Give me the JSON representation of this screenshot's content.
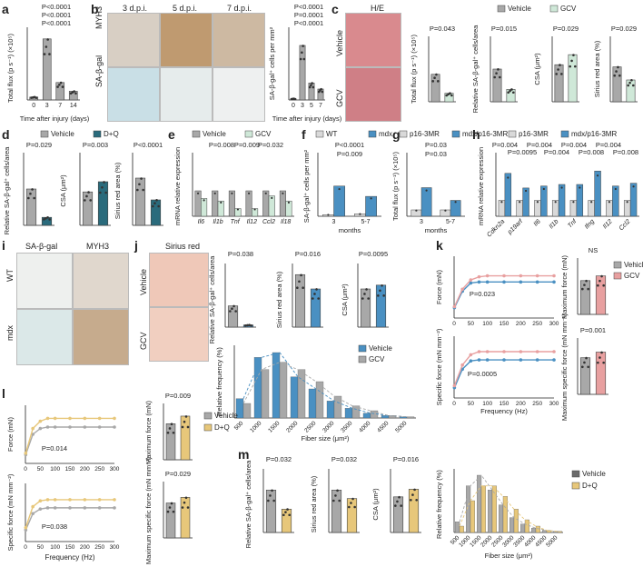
{
  "panels": {
    "a": {
      "letter": "a",
      "ylabel": "Total flux (p s⁻¹) (×10⁵)",
      "xlabel": "Time after injury (days)",
      "pvals": [
        "P<0.0001",
        "P<0.0001",
        "P<0.0001"
      ]
    },
    "b": {
      "letter": "b",
      "cols": [
        "3 d.p.i.",
        "5 d.p.i.",
        "7 d.p.i."
      ],
      "rows": [
        "MYH3",
        "SA-β-gal"
      ],
      "ylabel": "SA-β-gal⁺ cells per mm²",
      "xlabel": "Time after injury (days)",
      "pvals": [
        "P<0.0001",
        "P=0.0001",
        "P<0.0001"
      ]
    },
    "c": {
      "letter": "c",
      "title": "H/E",
      "rows": [
        "Vehicle",
        "GCV"
      ],
      "legend": [
        "Vehicle",
        "GCV"
      ],
      "pvals": [
        "P=0.043",
        "P=0.015",
        "P=0.029",
        "P=0.029"
      ],
      "ylabels": [
        "Total flux (p s⁻¹) (×10⁵)",
        "Relative SA-β-gal⁺ cells/area",
        "CSA (μm²)",
        "Sirius red area (%)"
      ]
    },
    "d": {
      "letter": "d",
      "legend": [
        "Vehicle",
        "D+Q"
      ],
      "pvals": [
        "P=0.029",
        "P=0.003",
        "P<0.0001"
      ],
      "ylabels": [
        "Relative SA-β-gal⁺ cells/area",
        "CSA (μm²)",
        "Sirius red area (%)"
      ]
    },
    "e": {
      "letter": "e",
      "legend": [
        "Vehicle",
        "GCV"
      ],
      "ylabel": "mRNA relative expression",
      "genes": [
        "Il6",
        "Il1b",
        "Tnf",
        "Il12",
        "Ccl2",
        "Il18"
      ],
      "pvals": [
        "P=0.008",
        "P=0.009",
        "P=0.032"
      ]
    },
    "f": {
      "letter": "f",
      "legend": [
        "WT",
        "mdx"
      ],
      "ylabel": "SA-β-gal⁺ cells per mm²",
      "xlabel": "months",
      "xcats": [
        "3",
        "5-7"
      ],
      "pvals": [
        "P<0.0001",
        "P=0.009"
      ]
    },
    "g": {
      "letter": "g",
      "legend": [
        "p16-3MR",
        "mdx/p16-3MR"
      ],
      "ylabel": "Total flux (p s⁻¹) (×10⁵)",
      "xlabel": "months",
      "xcats": [
        "3",
        "5-7"
      ],
      "pvals": [
        "P=0.03",
        "P=0.03"
      ]
    },
    "h": {
      "letter": "h",
      "legend": [
        "p16-3MR",
        "mdx/p16-3MR"
      ],
      "ylabel": "mRNA relative expression",
      "genes": [
        "Cdkn2a",
        "p19arf",
        "Il6",
        "Il1b",
        "Tnf",
        "Ifng",
        "Il12",
        "Ccl2"
      ],
      "pvals": [
        "P=0.004",
        "P=0.0095",
        "P=0.004",
        "P=0.004",
        "P=0.004",
        "P=0.008",
        "P=0.004",
        "P=0.008"
      ]
    },
    "i": {
      "letter": "i",
      "cols": [
        "SA-β-gal",
        "MYH3"
      ],
      "rows": [
        "WT",
        "mdx"
      ]
    },
    "j": {
      "letter": "j",
      "title": "Sirius red",
      "rows": [
        "Vehicle",
        "GCV"
      ],
      "pvals": [
        "P=0.038",
        "P=0.016",
        "P=0.0095"
      ],
      "ylabels": [
        "Relative SA-β-gal⁺ cells/area",
        "Sirius red area (%)",
        "CSA (μm²)"
      ],
      "hist_ylabel": "Relative frequency (%)",
      "hist_xlabel": "Fiber size (μm²)",
      "legend": [
        "Vehicle",
        "GCV"
      ]
    },
    "k": {
      "letter": "k",
      "legend": [
        "Vehicle",
        "GCV"
      ],
      "ylabels": [
        "Force (mN)",
        "Specific force (mN mm⁻²)"
      ],
      "xlabel": "Frequency (Hz)",
      "pvals": [
        "P=0.023",
        "P=0.0005",
        "NS",
        "P=0.001"
      ],
      "bar_ylabels": [
        "Maximum force (mN)",
        "Maximum specific force (mN mm⁻²)"
      ]
    },
    "l": {
      "letter": "l",
      "legend": [
        "Vehicle",
        "D+Q"
      ],
      "ylabels": [
        "Force (mN)",
        "Specific force (mN mm⁻²)"
      ],
      "xlabel": "Frequency (Hz)",
      "pvals": [
        "P=0.014",
        "P=0.038",
        "P=0.009",
        "P=0.029"
      ],
      "bar_ylabels": [
        "Maximum force (mN)",
        "Maximum specific force (mN mm⁻²)"
      ]
    },
    "m": {
      "letter": "m",
      "legend": [
        "Vehicle",
        "D+Q"
      ],
      "pvals": [
        "P=0.032",
        "P=0.032",
        "P=0.016"
      ],
      "ylabels": [
        "Relative SA-β-gal⁺ cells/area",
        "Sirius red area (%)",
        "CSA (μm²)",
        "Relative frequency (%)"
      ],
      "hist_xlabel": "Fiber size (μm²)"
    }
  },
  "colors": {
    "vehicle": "#a8a8a8",
    "gcv": "#cfe8d8",
    "dq": "#2a6b7c",
    "mdx": "#4a90c2",
    "wt": "#d9d9d9",
    "sirius": "#e8a0a0",
    "dq_line": "#e7c77a"
  },
  "chart_data": [
    {
      "id": "a",
      "type": "bar",
      "categories": [
        "0",
        "3",
        "7",
        "14"
      ],
      "values": [
        1,
        21,
        6,
        3
      ],
      "ylim": [
        0,
        25
      ]
    },
    {
      "id": "b",
      "type": "bar",
      "categories": [
        "0",
        "3",
        "5",
        "7"
      ],
      "values": [
        10,
        450,
        140,
        90
      ],
      "ylim": [
        0,
        600
      ]
    },
    {
      "id": "c1",
      "type": "bar",
      "categories": [
        "Vehicle",
        "GCV"
      ],
      "values": [
        4.2,
        1.3
      ],
      "ylim": [
        0,
        10
      ]
    },
    {
      "id": "c2",
      "type": "bar",
      "categories": [
        "Vehicle",
        "GCV"
      ],
      "values": [
        100,
        38
      ],
      "ylim": [
        0,
        200
      ]
    },
    {
      "id": "c3",
      "type": "bar",
      "categories": [
        "Vehicle",
        "GCV"
      ],
      "values": [
        850,
        1080
      ],
      "ylim": [
        0,
        1500
      ]
    },
    {
      "id": "c4",
      "type": "bar",
      "categories": [
        "Vehicle",
        "GCV"
      ],
      "values": [
        16,
        10
      ],
      "ylim": [
        0,
        30
      ]
    },
    {
      "id": "d1",
      "type": "bar",
      "categories": [
        "Vehicle",
        "D+Q"
      ],
      "values": [
        100,
        22
      ],
      "ylim": [
        0,
        200
      ]
    },
    {
      "id": "d2",
      "type": "bar",
      "categories": [
        "Vehicle",
        "D+Q"
      ],
      "values": [
        1150,
        1500
      ],
      "ylim": [
        0,
        2500
      ]
    },
    {
      "id": "d3",
      "type": "bar",
      "categories": [
        "Vehicle",
        "D+Q"
      ],
      "values": [
        13,
        7
      ],
      "ylim": [
        0,
        20
      ]
    },
    {
      "id": "e",
      "type": "bar",
      "categories": [
        "Il6",
        "Il1b",
        "Tnf",
        "Il12",
        "Ccl2",
        "Il18"
      ],
      "series": [
        {
          "name": "Vehicle",
          "values": [
            1.0,
            1.0,
            1.0,
            1.0,
            1.0,
            1.0
          ]
        },
        {
          "name": "GCV",
          "values": [
            0.7,
            0.6,
            0.3,
            0.3,
            0.8,
            0.6
          ]
        }
      ],
      "ylim": [
        0,
        2.5
      ]
    },
    {
      "id": "f",
      "type": "bar",
      "categories": [
        "3",
        "5-7"
      ],
      "series": [
        {
          "name": "WT",
          "values": [
            2,
            3
          ]
        },
        {
          "name": "mdx",
          "values": [
            38,
            25
          ]
        }
      ],
      "ylim": [
        0,
        80
      ]
    },
    {
      "id": "g",
      "type": "bar",
      "categories": [
        "3",
        "5-7"
      ],
      "series": [
        {
          "name": "p16-3MR",
          "values": [
            2,
            2
          ]
        },
        {
          "name": "mdx/p16-3MR",
          "values": [
            9,
            5
          ]
        }
      ],
      "ylim": [
        0,
        20
      ]
    },
    {
      "id": "h",
      "type": "bar",
      "categories": [
        "Cdkn2a",
        "p19arf",
        "Il6",
        "Il1b",
        "Tnf",
        "Ifng",
        "Il12",
        "Ccl2"
      ],
      "series": [
        {
          "name": "p16-3MR",
          "values": [
            1,
            1,
            1,
            1,
            1,
            1,
            1,
            1
          ]
        },
        {
          "name": "mdx/p16-3MR",
          "values": [
            50,
            6,
            8,
            10,
            10,
            70,
            8,
            12
          ]
        }
      ],
      "ylim": [
        0.1,
        1000
      ],
      "scale": "log"
    },
    {
      "id": "j1",
      "type": "bar",
      "categories": [
        "Vehicle",
        "GCV"
      ],
      "values": [
        100,
        10
      ],
      "ylim": [
        0,
        300
      ]
    },
    {
      "id": "j2",
      "type": "bar",
      "categories": [
        "Vehicle",
        "GCV"
      ],
      "values": [
        16.5,
        12
      ],
      "ylim": [
        0,
        20
      ]
    },
    {
      "id": "j3",
      "type": "bar",
      "categories": [
        "Vehicle",
        "GCV"
      ],
      "values": [
        1500,
        1650
      ],
      "ylim": [
        0,
        2500
      ]
    },
    {
      "id": "j4",
      "type": "bar",
      "categories": [
        "500",
        "1000",
        "1500",
        "2000",
        "2500",
        "3000",
        "3500",
        "4000",
        "4500",
        "5000"
      ],
      "series": [
        {
          "name": "Vehicle",
          "values": [
            8,
            25,
            27,
            17,
            12,
            7,
            4,
            2,
            1,
            0.5
          ]
        },
        {
          "name": "GCV",
          "values": [
            6,
            20,
            23,
            20,
            15,
            9,
            5,
            3,
            1,
            0.5
          ]
        }
      ],
      "ylim": [
        0,
        30
      ]
    },
    {
      "id": "k1",
      "type": "line",
      "x": [
        1,
        25,
        50,
        75,
        100,
        150,
        200,
        250,
        300
      ],
      "series": [
        {
          "name": "Vehicle",
          "values": [
            50,
            130,
            170,
            175,
            175,
            175,
            175,
            175,
            175
          ]
        },
        {
          "name": "GCV",
          "values": [
            55,
            140,
            185,
            200,
            205,
            205,
            205,
            205,
            205
          ]
        }
      ],
      "ylim": [
        0,
        300
      ]
    },
    {
      "id": "k2",
      "type": "line",
      "x": [
        1,
        25,
        50,
        75,
        100,
        150,
        200,
        250,
        300
      ],
      "series": [
        {
          "name": "Vehicle",
          "values": [
            50,
            140,
            180,
            185,
            185,
            185,
            185,
            185,
            185
          ]
        },
        {
          "name": "GCV",
          "values": [
            60,
            160,
            210,
            225,
            225,
            225,
            225,
            225,
            225
          ]
        }
      ],
      "ylim": [
        0,
        300
      ]
    },
    {
      "id": "k3",
      "type": "bar",
      "categories": [
        "Vehicle",
        "GCV"
      ],
      "values": [
        180,
        205
      ],
      "ylim": [
        0,
        300
      ]
    },
    {
      "id": "k4",
      "type": "bar",
      "categories": [
        "Vehicle",
        "GCV"
      ],
      "values": [
        195,
        225
      ],
      "ylim": [
        0,
        300
      ]
    },
    {
      "id": "l1",
      "type": "line",
      "x": [
        1,
        25,
        50,
        75,
        100,
        150,
        200,
        250,
        300
      ],
      "series": [
        {
          "name": "Vehicle",
          "values": [
            30,
            100,
            120,
            125,
            125,
            125,
            125,
            125,
            125
          ]
        },
        {
          "name": "D+Q",
          "values": [
            35,
            120,
            145,
            155,
            155,
            155,
            155,
            155,
            155
          ]
        }
      ],
      "ylim": [
        0,
        200
      ]
    },
    {
      "id": "l2",
      "type": "line",
      "x": [
        1,
        25,
        50,
        75,
        100,
        150,
        200,
        250,
        300
      ],
      "series": [
        {
          "name": "Vehicle",
          "values": [
            50,
            120,
            140,
            145,
            145,
            145,
            145,
            145,
            145
          ]
        },
        {
          "name": "D+Q",
          "values": [
            60,
            150,
            175,
            180,
            180,
            180,
            180,
            180,
            180
          ]
        }
      ],
      "ylim": [
        0,
        250
      ]
    },
    {
      "id": "l3",
      "type": "bar",
      "categories": [
        "Vehicle",
        "D+Q"
      ],
      "values": [
        128,
        155
      ],
      "ylim": [
        0,
        200
      ]
    },
    {
      "id": "l4",
      "type": "bar",
      "categories": [
        "Vehicle",
        "D+Q"
      ],
      "values": [
        155,
        180
      ],
      "ylim": [
        0,
        250
      ]
    },
    {
      "id": "m1",
      "type": "bar",
      "categories": [
        "Vehicle",
        "D+Q"
      ],
      "values": [
        100,
        55
      ],
      "ylim": [
        0,
        150
      ]
    },
    {
      "id": "m2",
      "type": "bar",
      "categories": [
        "Vehicle",
        "D+Q"
      ],
      "values": [
        20,
        16
      ],
      "ylim": [
        0,
        30
      ]
    },
    {
      "id": "m3",
      "type": "bar",
      "categories": [
        "Vehicle",
        "D+Q"
      ],
      "values": [
        1400,
        1700
      ],
      "ylim": [
        0,
        2500
      ]
    },
    {
      "id": "m4",
      "type": "bar",
      "categories": [
        "500",
        "1000",
        "1500",
        "2000",
        "2500",
        "3000",
        "3500",
        "4000",
        "4500",
        "5000"
      ],
      "series": [
        {
          "name": "Vehicle",
          "values": [
            5,
            22,
            27,
            20,
            13,
            7,
            4,
            2,
            1,
            0.5
          ]
        },
        {
          "name": "D+Q",
          "values": [
            3,
            15,
            22,
            22,
            17,
            11,
            6,
            3,
            1,
            0.5
          ]
        }
      ],
      "ylim": [
        0,
        30
      ]
    }
  ]
}
